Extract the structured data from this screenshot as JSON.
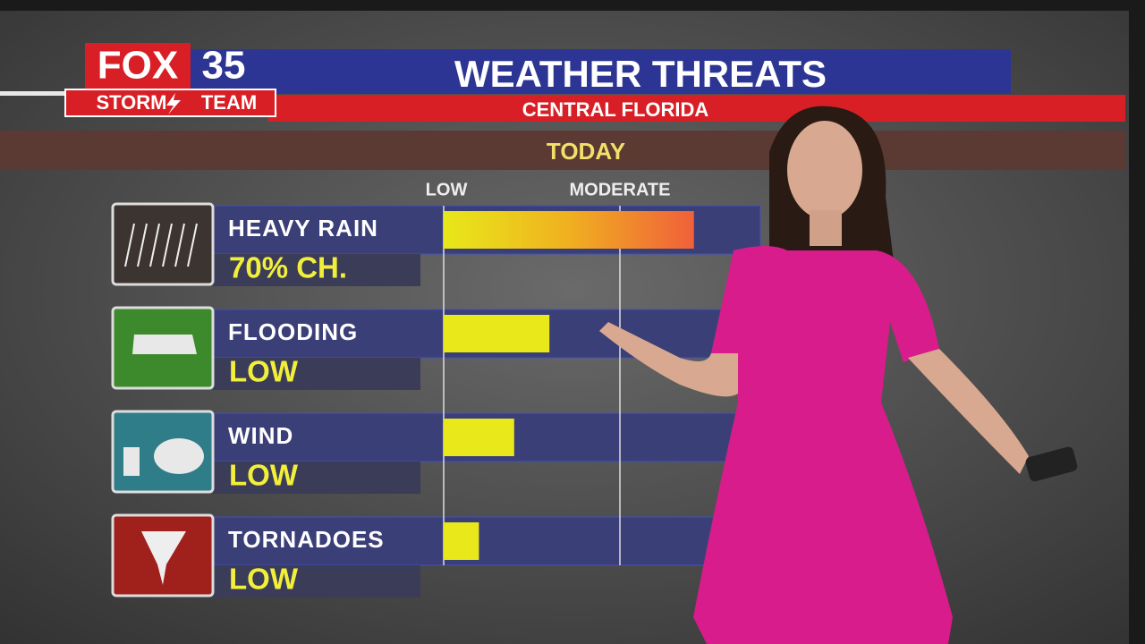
{
  "brand": {
    "name": "FOX",
    "channel": "35",
    "team_left": "STORM",
    "team_right": "TEAM"
  },
  "chart_data": {
    "type": "bar",
    "orientation": "horizontal",
    "title": "WEATHER THREATS",
    "subtitle": "CENTRAL FLORIDA",
    "period": "TODAY",
    "categories": [
      "HEAVY RAIN",
      "FLOODING",
      "WIND",
      "TORNADOES"
    ],
    "ratings": [
      "70% CH.",
      "LOW",
      "LOW",
      "LOW"
    ],
    "values": [
      1.42,
      0.6,
      0.4,
      0.2
    ],
    "xlim": [
      0,
      2
    ],
    "xticks": [
      {
        "value": 0,
        "label": "LOW"
      },
      {
        "value": 1,
        "label": "MODERATE"
      }
    ],
    "color": "#e8e81a",
    "gradient_color": "#f0603a",
    "grid": true
  }
}
